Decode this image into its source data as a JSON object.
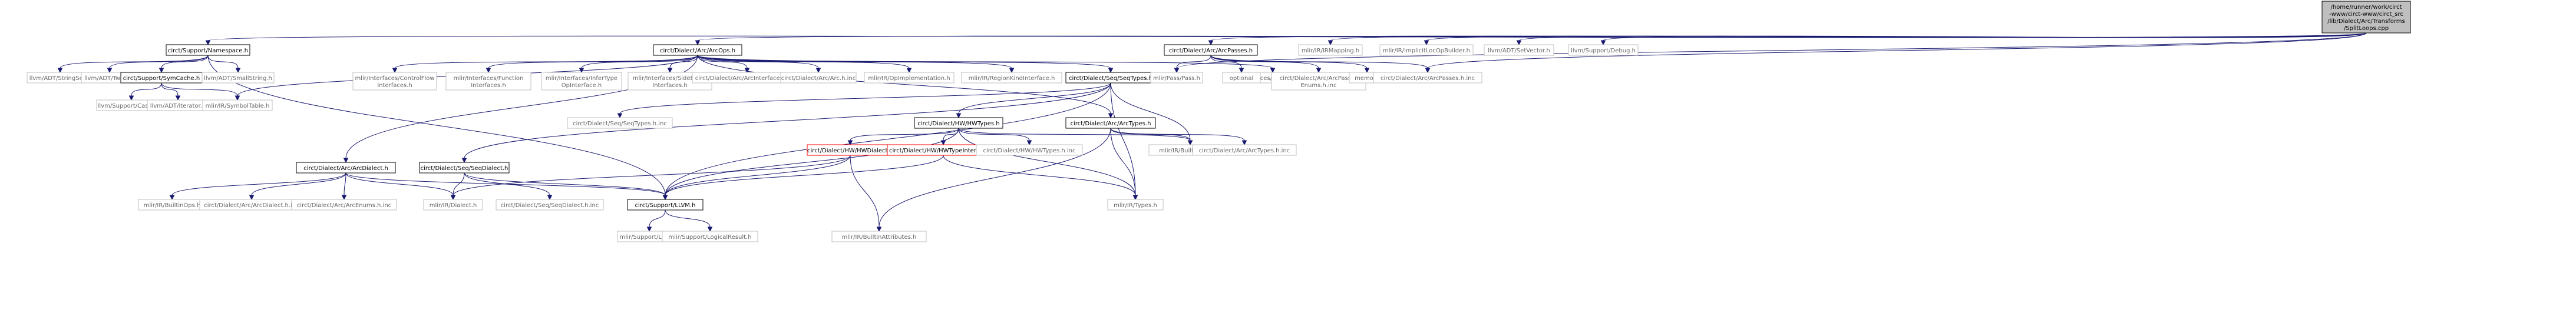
{
  "colors": {
    "edge": "#191970",
    "box_border": "#000000",
    "box_fill": "#ffffff",
    "root_fill": "#bfbfbf",
    "error_border": "#ff0000",
    "leaf_border": "#bfbfbf",
    "leaf_text": "#666666",
    "text": "#000000"
  },
  "nodes": {
    "root": {
      "lines": [
        "/home/runner/work/circt",
        "-www/circt-www/circt_src",
        "/lib/Dialect/Arc/Transforms",
        "/SplitLoops.cpp"
      ],
      "kind": "root"
    },
    "namespace": {
      "lines": [
        "circt/Support/Namespace.h"
      ],
      "kind": "normal"
    },
    "arcops": {
      "lines": [
        "circt/Dialect/Arc/ArcOps.h"
      ],
      "kind": "normal"
    },
    "arcpasses": {
      "lines": [
        "circt/Dialect/Arc/ArcPasses.h"
      ],
      "kind": "normal"
    },
    "irmapping": {
      "lines": [
        "mlir/IR/IRMapping.h"
      ],
      "kind": "leaf"
    },
    "implicitlocop": {
      "lines": [
        "mlir/IR/ImplicitLocOpBuilder.h"
      ],
      "kind": "leaf"
    },
    "setvector": {
      "lines": [
        "llvm/ADT/SetVector.h"
      ],
      "kind": "leaf"
    },
    "debug": {
      "lines": [
        "llvm/Support/Debug.h"
      ],
      "kind": "leaf"
    },
    "stringset": {
      "lines": [
        "llvm/ADT/StringSet.h"
      ],
      "kind": "leaf"
    },
    "twine": {
      "lines": [
        "llvm/ADT/Twine.h"
      ],
      "kind": "leaf"
    },
    "symcache": {
      "lines": [
        "circt/Support/SymCache.h"
      ],
      "kind": "normal"
    },
    "smallstring": {
      "lines": [
        "llvm/ADT/SmallString.h"
      ],
      "kind": "leaf"
    },
    "casting": {
      "lines": [
        "llvm/Support/Casting.h"
      ],
      "kind": "leaf"
    },
    "iterator": {
      "lines": [
        "llvm/ADT/iterator.h"
      ],
      "kind": "leaf"
    },
    "symboltable": {
      "lines": [
        "mlir/IR/SymbolTable.h"
      ],
      "kind": "leaf"
    },
    "controlflow": {
      "lines": [
        "mlir/Interfaces/ControlFlow",
        "Interfaces.h"
      ],
      "kind": "leaf"
    },
    "functioninterfaces": {
      "lines": [
        "mlir/Interfaces/Function",
        "Interfaces.h"
      ],
      "kind": "leaf"
    },
    "infertype": {
      "lines": [
        "mlir/Interfaces/InferType",
        "OpInterface.h"
      ],
      "kind": "leaf"
    },
    "sideeffect": {
      "lines": [
        "mlir/Interfaces/SideEffect",
        "Interfaces.h"
      ],
      "kind": "leaf"
    },
    "arcinterfacesinc": {
      "lines": [
        "circt/Dialect/Arc/ArcInterfaces.h.inc"
      ],
      "kind": "leaf"
    },
    "archinc": {
      "lines": [
        "circt/Dialect/Arc/Arc.h.inc"
      ],
      "kind": "leaf"
    },
    "opimpl": {
      "lines": [
        "mlir/IR/OpImplementation.h"
      ],
      "kind": "leaf"
    },
    "regionkind": {
      "lines": [
        "mlir/IR/RegionKindInterface.h"
      ],
      "kind": "leaf"
    },
    "seqtypes": {
      "lines": [
        "circt/Dialect/Seq/SeqTypes.h"
      ],
      "kind": "normal"
    },
    "callinterfaces": {
      "lines": [
        "mlir/Interfaces/CallInterfaces.h"
      ],
      "kind": "leaf"
    },
    "pass": {
      "lines": [
        "mlir/Pass/Pass.h"
      ],
      "kind": "leaf"
    },
    "optional": {
      "lines": [
        "optional"
      ],
      "kind": "leaf"
    },
    "arcpassesenums": {
      "lines": [
        "circt/Dialect/Arc/ArcPasses",
        "Enums.h.inc"
      ],
      "kind": "leaf"
    },
    "memory": {
      "lines": [
        "memory"
      ],
      "kind": "leaf"
    },
    "arcpassesinc": {
      "lines": [
        "circt/Dialect/Arc/ArcPasses.h.inc"
      ],
      "kind": "leaf"
    },
    "arcdialect": {
      "lines": [
        "circt/Dialect/Arc/ArcDialect.h"
      ],
      "kind": "normal"
    },
    "seqdialect": {
      "lines": [
        "circt/Dialect/Seq/SeqDialect.h"
      ],
      "kind": "normal"
    },
    "seqtypesinc": {
      "lines": [
        "circt/Dialect/Seq/SeqTypes.h.inc"
      ],
      "kind": "leaf"
    },
    "hwtypes": {
      "lines": [
        "circt/Dialect/HW/HWTypes.h"
      ],
      "kind": "normal"
    },
    "arctypes": {
      "lines": [
        "circt/Dialect/Arc/ArcTypes.h"
      ],
      "kind": "normal"
    },
    "hwdialect": {
      "lines": [
        "circt/Dialect/HW/HWDialect.h"
      ],
      "kind": "error"
    },
    "hwtypeinterfaces": {
      "lines": [
        "circt/Dialect/HW/HWTypeInterfaces.h"
      ],
      "kind": "error"
    },
    "hwtypesinc": {
      "lines": [
        "circt/Dialect/HW/HWTypes.h.inc"
      ],
      "kind": "leaf"
    },
    "builtintypes": {
      "lines": [
        "mlir/IR/BuiltinTypes.h"
      ],
      "kind": "leaf"
    },
    "arctypesinc": {
      "lines": [
        "circt/Dialect/Arc/ArcTypes.h.inc"
      ],
      "kind": "leaf"
    },
    "builtinops": {
      "lines": [
        "mlir/IR/BuiltinOps.h"
      ],
      "kind": "leaf"
    },
    "arcdialectinc": {
      "lines": [
        "circt/Dialect/Arc/ArcDialect.h.inc"
      ],
      "kind": "leaf"
    },
    "arcenumsinc": {
      "lines": [
        "circt/Dialect/Arc/ArcEnums.h.inc"
      ],
      "kind": "leaf"
    },
    "mlirdialect": {
      "lines": [
        "mlir/IR/Dialect.h"
      ],
      "kind": "leaf"
    },
    "seqdialectinc": {
      "lines": [
        "circt/Dialect/Seq/SeqDialect.h.inc"
      ],
      "kind": "leaf"
    },
    "circtllvm": {
      "lines": [
        "circt/Support/LLVM.h"
      ],
      "kind": "normal"
    },
    "builtinattrs": {
      "lines": [
        "mlir/IR/BuiltinAttributes.h"
      ],
      "kind": "leaf"
    },
    "mlirtypes": {
      "lines": [
        "mlir/IR/Types.h"
      ],
      "kind": "leaf"
    },
    "mlirllvm": {
      "lines": [
        "mlir/Support/LLVM.h"
      ],
      "kind": "leaf"
    },
    "logicalresult": {
      "lines": [
        "mlir/Support/LogicalResult.h"
      ],
      "kind": "leaf"
    }
  },
  "edges": [
    [
      "root",
      "namespace"
    ],
    [
      "root",
      "arcops"
    ],
    [
      "root",
      "arcpasses"
    ],
    [
      "root",
      "irmapping"
    ],
    [
      "root",
      "implicitlocop"
    ],
    [
      "root",
      "setvector"
    ],
    [
      "root",
      "debug"
    ],
    [
      "root",
      "pass"
    ],
    [
      "root",
      "arcpassesinc"
    ],
    [
      "namespace",
      "stringset"
    ],
    [
      "namespace",
      "twine"
    ],
    [
      "namespace",
      "symcache"
    ],
    [
      "namespace",
      "smallstring"
    ],
    [
      "namespace",
      "circtllvm"
    ],
    [
      "symcache",
      "casting"
    ],
    [
      "symcache",
      "iterator"
    ],
    [
      "symcache",
      "symboltable"
    ],
    [
      "arcops",
      "symboltable"
    ],
    [
      "arcops",
      "controlflow"
    ],
    [
      "arcops",
      "functioninterfaces"
    ],
    [
      "arcops",
      "infertype"
    ],
    [
      "arcops",
      "sideeffect"
    ],
    [
      "arcops",
      "arcinterfacesinc"
    ],
    [
      "arcops",
      "archinc"
    ],
    [
      "arcops",
      "opimpl"
    ],
    [
      "arcops",
      "regionkind"
    ],
    [
      "arcops",
      "seqtypes"
    ],
    [
      "arcops",
      "callinterfaces"
    ],
    [
      "arcops",
      "arcdialect"
    ],
    [
      "arcops",
      "arctypes"
    ],
    [
      "arcpasses",
      "pass"
    ],
    [
      "arcpasses",
      "optional"
    ],
    [
      "arcpasses",
      "arcpassesenums"
    ],
    [
      "arcpasses",
      "memory"
    ],
    [
      "arcpasses",
      "arcpassesinc"
    ],
    [
      "seqtypes",
      "seqdialect"
    ],
    [
      "seqtypes",
      "seqtypesinc"
    ],
    [
      "seqtypes",
      "hwtypes"
    ],
    [
      "seqtypes",
      "builtintypes"
    ],
    [
      "seqtypes",
      "circtllvm"
    ],
    [
      "seqtypes",
      "mlirtypes"
    ],
    [
      "hwtypes",
      "hwdialect"
    ],
    [
      "hwtypes",
      "hwtypeinterfaces"
    ],
    [
      "hwtypes",
      "hwtypesinc"
    ],
    [
      "hwtypes",
      "builtintypes"
    ],
    [
      "hwtypes",
      "mlirtypes"
    ],
    [
      "hwtypes",
      "circtllvm"
    ],
    [
      "arctypes",
      "arctypesinc"
    ],
    [
      "arctypes",
      "builtintypes"
    ],
    [
      "arctypes",
      "mlirtypes"
    ],
    [
      "arctypes",
      "builtinattrs"
    ],
    [
      "hwdialect",
      "mlirdialect"
    ],
    [
      "hwdialect",
      "circtllvm"
    ],
    [
      "hwdialect",
      "builtinattrs"
    ],
    [
      "hwtypeinterfaces",
      "circtllvm"
    ],
    [
      "hwtypeinterfaces",
      "mlirtypes"
    ],
    [
      "arcdialect",
      "builtinops"
    ],
    [
      "arcdialect",
      "arcdialectinc"
    ],
    [
      "arcdialect",
      "arcenumsinc"
    ],
    [
      "arcdialect",
      "mlirdialect"
    ],
    [
      "arcdialect",
      "circtllvm"
    ],
    [
      "seqdialect",
      "mlirdialect"
    ],
    [
      "seqdialect",
      "seqdialectinc"
    ],
    [
      "seqdialect",
      "circtllvm"
    ],
    [
      "circtllvm",
      "mlirllvm"
    ],
    [
      "circtllvm",
      "logicalresult"
    ]
  ]
}
